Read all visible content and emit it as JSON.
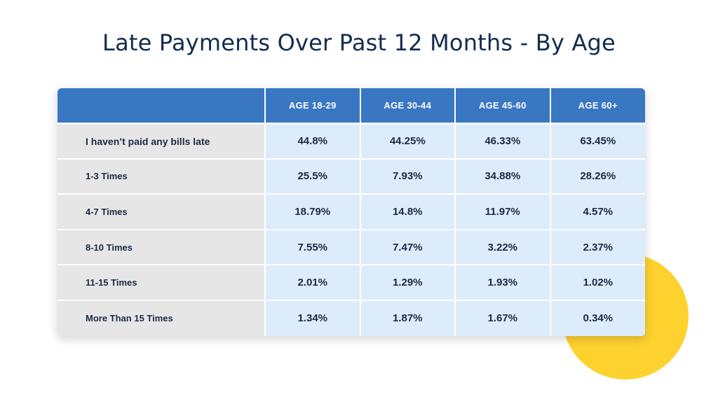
{
  "title": "Late Payments Over Past 12 Months - By Age",
  "colors": {
    "header_bg": "#3a77c3",
    "label_bg": "#e6e6e6",
    "cell_bg": "#ddecfb",
    "accent_circle": "#fdd22f",
    "title_text": "#132c4f"
  },
  "chart_data": {
    "type": "table",
    "title": "Late Payments Over Past 12 Months - By Age",
    "columns": [
      "AGE 18-29",
      "AGE 30-44",
      "AGE 45-60",
      "AGE 60+"
    ],
    "rows": [
      {
        "label": "I haven’t paid any bills late",
        "values": [
          "44.8%",
          "44.25%",
          "46.33%",
          "63.45%"
        ]
      },
      {
        "label": "1-3  Times",
        "values": [
          "25.5%",
          "7.93%",
          "34.88%",
          "28.26%"
        ]
      },
      {
        "label": "4-7  Times",
        "values": [
          "18.79%",
          "14.8%",
          "11.97%",
          "4.57%"
        ]
      },
      {
        "label": "8-10  Times",
        "values": [
          "7.55%",
          "7.47%",
          "3.22%",
          "2.37%"
        ]
      },
      {
        "label": "11-15  Times",
        "values": [
          "2.01%",
          "1.29%",
          "1.93%",
          "1.02%"
        ]
      },
      {
        "label": "More Than 15 Times",
        "values": [
          "1.34%",
          "1.87%",
          "1.67%",
          "0.34%"
        ]
      }
    ]
  }
}
